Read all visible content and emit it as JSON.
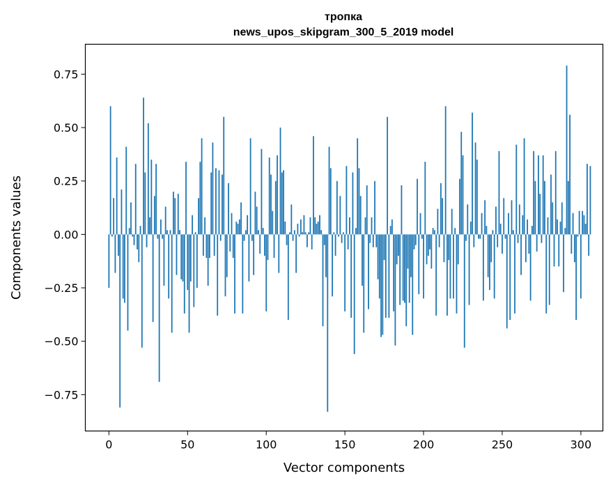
{
  "chart_data": {
    "type": "bar",
    "title": "тропка",
    "subtitle": "news_upos_skipgram_300_5_2019 model",
    "xlabel": "Vector components",
    "ylabel": "Components values",
    "xlim": [
      -15,
      314
    ],
    "ylim": [
      -0.92,
      0.89
    ],
    "xticks": [
      0,
      50,
      100,
      150,
      200,
      250,
      300
    ],
    "yticks": [
      -0.75,
      -0.5,
      -0.25,
      0.0,
      0.25,
      0.5,
      0.75
    ],
    "ytick_labels": [
      "−0.75",
      "−0.50",
      "−0.25",
      "0.00",
      "0.25",
      "0.50",
      "0.75"
    ],
    "grid": false,
    "bar_color": "#1f77b4",
    "values": [
      -0.25,
      0.6,
      -0.01,
      0.17,
      -0.18,
      0.36,
      -0.1,
      -0.81,
      0.21,
      -0.3,
      -0.32,
      0.41,
      -0.45,
      0.03,
      0.15,
      -0.01,
      -0.05,
      0.33,
      -0.07,
      -0.13,
      0.04,
      -0.53,
      0.64,
      0.29,
      -0.06,
      0.52,
      0.08,
      0.35,
      -0.41,
      0.18,
      0.33,
      -0.02,
      -0.69,
      0.07,
      -0.02,
      -0.24,
      0.13,
      0.02,
      -0.3,
      0.02,
      -0.46,
      0.2,
      0.17,
      -0.19,
      0.19,
      0.02,
      -0.21,
      -0.22,
      -0.37,
      0.34,
      -0.26,
      -0.46,
      -0.22,
      0.09,
      -0.34,
      0.01,
      -0.25,
      0.17,
      0.34,
      0.45,
      -0.1,
      0.08,
      -0.11,
      -0.24,
      -0.11,
      0.29,
      0.43,
      -0.1,
      0.31,
      -0.38,
      0.3,
      -0.03,
      0.28,
      0.55,
      -0.29,
      -0.2,
      0.24,
      -0.08,
      0.1,
      -0.11,
      -0.37,
      0.06,
      0.05,
      0.07,
      0.15,
      -0.37,
      -0.03,
      0.02,
      0.09,
      -0.22,
      0.45,
      -0.03,
      -0.19,
      0.2,
      0.13,
      0.02,
      -0.09,
      0.4,
      0.03,
      -0.1,
      -0.36,
      -0.12,
      0.36,
      0.28,
      0.11,
      -0.11,
      0.25,
      0.37,
      -0.18,
      0.5,
      0.29,
      0.3,
      0.06,
      -0.05,
      -0.4,
      0.01,
      0.14,
      -0.03,
      0.02,
      -0.18,
      0.05,
      -0.01,
      0.07,
      0.01,
      0.09,
      0.01,
      -0.06,
      0.01,
      0.08,
      -0.07,
      0.46,
      0.08,
      0.05,
      0.06,
      0.09,
      0.02,
      -0.43,
      -0.05,
      -0.2,
      -0.83,
      0.41,
      0.31,
      -0.29,
      0.01,
      -0.1,
      0.25,
      -0.01,
      0.18,
      -0.04,
      0.01,
      -0.36,
      0.32,
      -0.07,
      0.08,
      -0.39,
      0.29,
      -0.56,
      0.03,
      0.45,
      0.31,
      0.18,
      -0.24,
      -0.46,
      0.08,
      0.23,
      -0.35,
      -0.04,
      0.08,
      -0.06,
      0.25,
      -0.06,
      -0.21,
      -0.3,
      -0.48,
      -0.47,
      -0.12,
      -0.39,
      0.55,
      -0.39,
      0.04,
      0.07,
      -0.36,
      -0.52,
      -0.14,
      -0.1,
      -0.33,
      0.23,
      -0.31,
      -0.32,
      -0.43,
      -0.16,
      -0.32,
      -0.2,
      -0.47,
      -0.07,
      -0.05,
      0.26,
      -0.28,
      0.1,
      -0.02,
      -0.3,
      0.34,
      -0.14,
      -0.1,
      -0.07,
      -0.16,
      0.03,
      0.02,
      -0.38,
      0.12,
      -0.06,
      0.24,
      0.17,
      -0.13,
      0.6,
      -0.38,
      -0.12,
      -0.3,
      0.12,
      -0.3,
      0.03,
      -0.37,
      -0.14,
      0.26,
      0.48,
      0.37,
      -0.53,
      -0.03,
      0.14,
      -0.33,
      0.06,
      0.57,
      -0.06,
      0.43,
      0.35,
      -0.02,
      -0.02,
      0.1,
      -0.31,
      0.16,
      0.04,
      -0.2,
      -0.26,
      -0.13,
      0.02,
      -0.3,
      0.13,
      -0.06,
      0.39,
      0.05,
      -0.09,
      0.17,
      -0.02,
      -0.44,
      0.1,
      -0.4,
      0.16,
      0.02,
      -0.37,
      0.42,
      -0.04,
      0.14,
      -0.19,
      0.09,
      0.45,
      -0.13,
      0.07,
      -0.09,
      -0.31,
      0.04,
      0.39,
      0.25,
      -0.08,
      0.37,
      0.19,
      -0.04,
      0.37,
      0.25,
      -0.37,
      0.08,
      -0.33,
      0.28,
      0.15,
      -0.15,
      0.39,
      0.07,
      -0.15,
      0.06,
      0.15,
      -0.27,
      0.03,
      0.79,
      0.25,
      0.56,
      -0.09,
      0.1,
      -0.13,
      -0.4,
      -0.01,
      0.11,
      -0.3,
      0.11,
      0.09,
      0.05,
      0.33,
      -0.1,
      0.32
    ]
  }
}
